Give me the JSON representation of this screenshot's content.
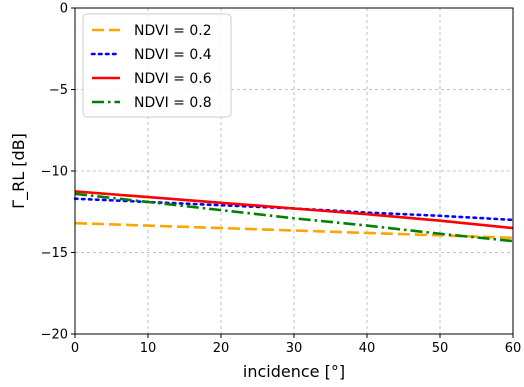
{
  "chart_data": {
    "type": "line",
    "xlabel": "incidence [°]",
    "ylabel": "Γ_RL [dB]",
    "xlim": [
      0,
      60
    ],
    "ylim": [
      -20,
      0
    ],
    "x_ticks": [
      0,
      10,
      20,
      30,
      40,
      50,
      60
    ],
    "y_ticks": [
      0,
      -5,
      -10,
      -15,
      -20
    ],
    "x_tick_labels": [
      "0",
      "10",
      "20",
      "30",
      "40",
      "50",
      "60"
    ],
    "y_tick_labels": [
      "0",
      "−5",
      "−10",
      "−15",
      "−20"
    ],
    "grid": true,
    "legend_position": "top-left",
    "series": [
      {
        "name": "NDVI = 0.2",
        "color": "#ffa500",
        "style": "dashed",
        "x": [
          0,
          10,
          20,
          30,
          40,
          50,
          60
        ],
        "y": [
          -13.2,
          -13.35,
          -13.5,
          -13.65,
          -13.8,
          -13.95,
          -14.1
        ]
      },
      {
        "name": "NDVI = 0.4",
        "color": "#0000ff",
        "style": "dotted",
        "x": [
          0,
          10,
          20,
          30,
          40,
          50,
          60
        ],
        "y": [
          -11.7,
          -11.9,
          -12.1,
          -12.3,
          -12.55,
          -12.75,
          -13.0
        ]
      },
      {
        "name": "NDVI = 0.6",
        "color": "#ff0000",
        "style": "solid",
        "x": [
          0,
          10,
          20,
          30,
          40,
          50,
          60
        ],
        "y": [
          -11.25,
          -11.6,
          -11.95,
          -12.3,
          -12.65,
          -13.05,
          -13.5
        ]
      },
      {
        "name": "NDVI = 0.8",
        "color": "#008000",
        "style": "dashdot",
        "x": [
          0,
          10,
          20,
          30,
          40,
          50,
          60
        ],
        "y": [
          -11.4,
          -11.9,
          -12.4,
          -12.9,
          -13.35,
          -13.85,
          -14.3
        ]
      }
    ]
  }
}
